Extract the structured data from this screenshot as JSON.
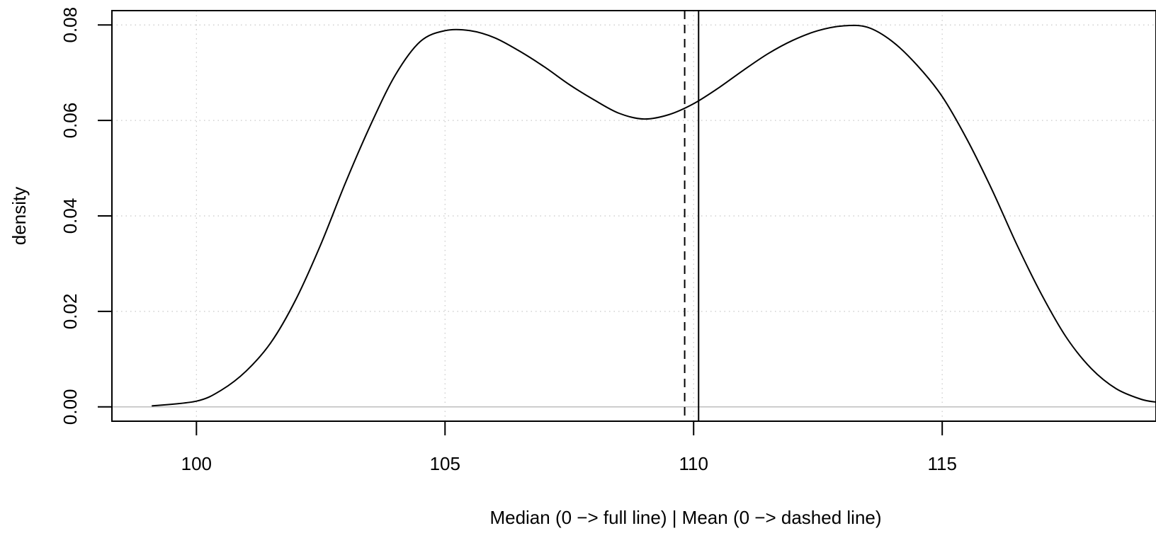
{
  "chart_data": {
    "type": "line",
    "title": "",
    "xlabel": "Median (0 −> full line) | Mean (0 −> dashed line)",
    "ylabel": "density",
    "xlim": [
      98.3,
      119.3
    ],
    "ylim": [
      -0.003,
      0.083
    ],
    "x_ticks": [
      100,
      105,
      110,
      115
    ],
    "x_tick_labels": [
      "100",
      "105",
      "110",
      "115"
    ],
    "y_ticks": [
      0.0,
      0.02,
      0.04,
      0.06,
      0.08
    ],
    "y_tick_labels": [
      "0.00",
      "0.02",
      "0.04",
      "0.06",
      "0.08"
    ],
    "grid": true,
    "series": [
      {
        "style": "solid",
        "x": [
          99.1,
          100.0,
          100.5,
          101.0,
          101.5,
          102.0,
          102.5,
          103.0,
          103.5,
          104.0,
          104.5,
          105.0,
          105.5,
          106.0,
          106.5,
          107.0,
          107.5,
          108.0,
          108.5,
          109.0,
          109.5,
          110.0,
          110.5,
          111.0,
          111.5,
          112.0,
          112.5,
          113.0,
          113.5,
          114.0,
          114.5,
          115.0,
          115.5,
          116.0,
          116.5,
          117.0,
          117.5,
          118.0,
          118.5,
          119.0,
          119.3
        ],
        "y": [
          0.0002,
          0.0012,
          0.0035,
          0.0075,
          0.0135,
          0.0225,
          0.034,
          0.047,
          0.059,
          0.0695,
          0.0765,
          0.0788,
          0.0788,
          0.0773,
          0.0745,
          0.0712,
          0.0675,
          0.0643,
          0.0615,
          0.0603,
          0.0612,
          0.0635,
          0.0668,
          0.0705,
          0.074,
          0.0768,
          0.0788,
          0.0798,
          0.0795,
          0.0765,
          0.0715,
          0.065,
          0.056,
          0.0455,
          0.034,
          0.0235,
          0.0145,
          0.008,
          0.0038,
          0.0016,
          0.001
        ]
      }
    ],
    "vlines": [
      {
        "x": 109.82,
        "style": "dashed"
      },
      {
        "x": 110.1,
        "style": "solid"
      }
    ],
    "hline": {
      "y": 0,
      "color": "#bebebe"
    }
  }
}
